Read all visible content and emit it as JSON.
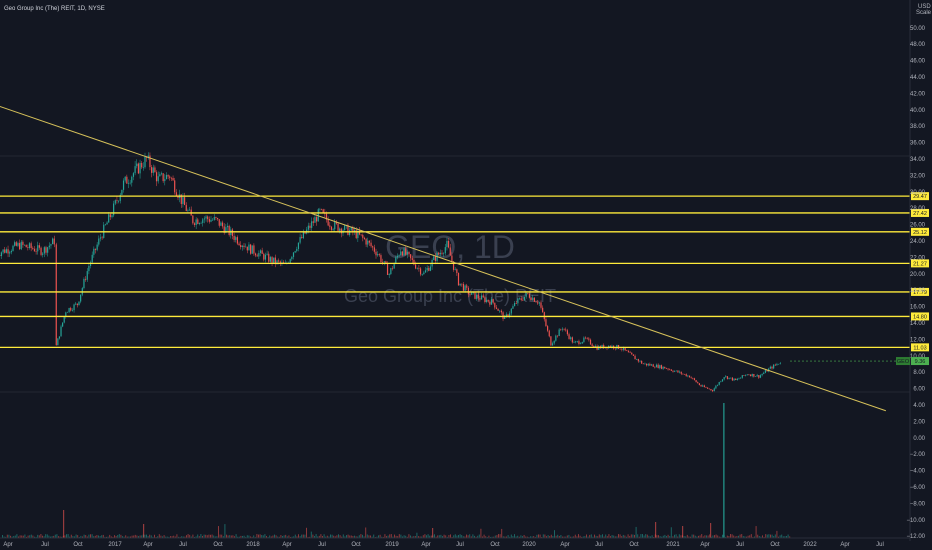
{
  "header": {
    "title": "Geo Group Inc (The) REIT, 1D, NYSE",
    "currency": "USD",
    "scale": "Scale"
  },
  "watermark": {
    "ticker": "GEO, 1D",
    "name": "Geo Group Inc (The) REIT"
  },
  "colors": {
    "background": "#131722",
    "up": "#26a69a",
    "down": "#ef5350",
    "level": "#ffeb3b",
    "trendline": "#d6c15a",
    "price_badge": "#4caf50"
  },
  "chart_data": {
    "type": "candlestick",
    "title": "Geo Group Inc (The) REIT, 1D, NYSE",
    "price_axis_ticks": [
      "50.00",
      "48.00",
      "46.00",
      "44.00",
      "42.00",
      "40.00",
      "38.00",
      "36.00",
      "34.00",
      "32.00",
      "30.00",
      "28.00",
      "26.00",
      "24.00",
      "22.00",
      "20.00",
      "18.00",
      "16.00",
      "14.00",
      "12.00",
      "10.00",
      "8.00",
      "6.00",
      "4.00",
      "2.00",
      "0.00",
      "−2.00",
      "−4.00",
      "−6.00",
      "−8.00",
      "−10.00",
      "−12.00"
    ],
    "ylim": [
      -13,
      52
    ],
    "time_axis_ticks": [
      "Apr",
      "Jul",
      "Oct",
      "2017",
      "Apr",
      "Jul",
      "Oct",
      "2018",
      "Apr",
      "Jul",
      "Oct",
      "2019",
      "Apr",
      "Jul",
      "Oct",
      "2020",
      "Apr",
      "Jul",
      "Oct",
      "2021",
      "Apr",
      "Jul",
      "Oct",
      "2022",
      "Apr",
      "Jul"
    ],
    "horizontal_levels": [
      29.47,
      27.42,
      25.12,
      21.27,
      17.79,
      14.8,
      11.03
    ],
    "level_labels": [
      "29.47",
      "27.42",
      "25.12",
      "21.27",
      "17.79",
      "14.80",
      "11.03"
    ],
    "current_price": 9.36,
    "current_price_label": "9.36",
    "current_price_tag": "GEO",
    "trendline": {
      "from": {
        "date": "2015-12",
        "price": 42.0
      },
      "to": {
        "date": "2022-08",
        "price": 3.3
      }
    },
    "price_path": [
      {
        "date": "2016-03",
        "close": 22.5
      },
      {
        "date": "2016-05",
        "close": 23.5
      },
      {
        "date": "2016-07",
        "close": 22.8
      },
      {
        "date": "2016-08",
        "close": 24.0
      },
      {
        "date": "2016-08b",
        "close": 11.2
      },
      {
        "date": "2016-09",
        "close": 15.5
      },
      {
        "date": "2016-10",
        "close": 16.3
      },
      {
        "date": "2016-11",
        "close": 21.0
      },
      {
        "date": "2016-12",
        "close": 24.5
      },
      {
        "date": "2017-01",
        "close": 27.5
      },
      {
        "date": "2017-02",
        "close": 31.0
      },
      {
        "date": "2017-04",
        "close": 34.0
      },
      {
        "date": "2017-05",
        "close": 31.5
      },
      {
        "date": "2017-06",
        "close": 32.0
      },
      {
        "date": "2017-07",
        "close": 29.0
      },
      {
        "date": "2017-08",
        "close": 26.5
      },
      {
        "date": "2017-09",
        "close": 26.8
      },
      {
        "date": "2017-10",
        "close": 26.5
      },
      {
        "date": "2017-12",
        "close": 24.0
      },
      {
        "date": "2018-01",
        "close": 23.0
      },
      {
        "date": "2018-03",
        "close": 21.5
      },
      {
        "date": "2018-04",
        "close": 21.0
      },
      {
        "date": "2018-05",
        "close": 23.5
      },
      {
        "date": "2018-06",
        "close": 25.5
      },
      {
        "date": "2018-07",
        "close": 27.5
      },
      {
        "date": "2018-08",
        "close": 26.0
      },
      {
        "date": "2018-09",
        "close": 25.5
      },
      {
        "date": "2018-10",
        "close": 25.0
      },
      {
        "date": "2018-11",
        "close": 24.0
      },
      {
        "date": "2018-12",
        "close": 22.5
      },
      {
        "date": "2019-01",
        "close": 20.0
      },
      {
        "date": "2019-02",
        "close": 23.0
      },
      {
        "date": "2019-03",
        "close": 21.5
      },
      {
        "date": "2019-04",
        "close": 20.0
      },
      {
        "date": "2019-05",
        "close": 22.0
      },
      {
        "date": "2019-06",
        "close": 23.5
      },
      {
        "date": "2019-07",
        "close": 19.0
      },
      {
        "date": "2019-08",
        "close": 17.5
      },
      {
        "date": "2019-09",
        "close": 17.0
      },
      {
        "date": "2019-10",
        "close": 16.5
      },
      {
        "date": "2019-11",
        "close": 14.5
      },
      {
        "date": "2019-12",
        "close": 16.5
      },
      {
        "date": "2020-01",
        "close": 17.5
      },
      {
        "date": "2020-02",
        "close": 16.5
      },
      {
        "date": "2020-03",
        "close": 11.5
      },
      {
        "date": "2020-04",
        "close": 13.5
      },
      {
        "date": "2020-05",
        "close": 11.5
      },
      {
        "date": "2020-06",
        "close": 12.0
      },
      {
        "date": "2020-07",
        "close": 11.0
      },
      {
        "date": "2020-08",
        "close": 11.2
      },
      {
        "date": "2020-09",
        "close": 11.0
      },
      {
        "date": "2020-10",
        "close": 10.0
      },
      {
        "date": "2020-11",
        "close": 9.0
      },
      {
        "date": "2020-12",
        "close": 8.8
      },
      {
        "date": "2021-01",
        "close": 8.5
      },
      {
        "date": "2021-02",
        "close": 8.0
      },
      {
        "date": "2021-03",
        "close": 7.5
      },
      {
        "date": "2021-04",
        "close": 6.3
      },
      {
        "date": "2021-05",
        "close": 5.8
      },
      {
        "date": "2021-06",
        "close": 7.5
      },
      {
        "date": "2021-07",
        "close": 7.0
      },
      {
        "date": "2021-08",
        "close": 7.8
      },
      {
        "date": "2021-09",
        "close": 7.5
      },
      {
        "date": "2021-10",
        "close": 8.5
      },
      {
        "date": "2021-11",
        "close": 9.36
      }
    ],
    "volume_spike": {
      "date": "2021-06",
      "note": "largest volume bar"
    }
  }
}
